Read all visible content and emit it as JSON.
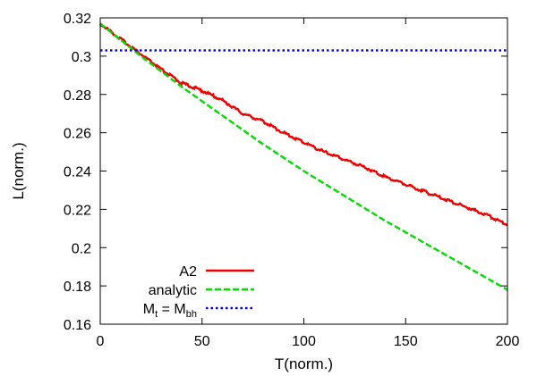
{
  "chart_data": {
    "type": "line",
    "xlabel": "T(norm.)",
    "ylabel": "L(norm.)",
    "xlim": [
      0,
      200
    ],
    "ylim": [
      0.16,
      0.32
    ],
    "xticks": [
      0,
      50,
      100,
      150,
      200
    ],
    "yticks": [
      0.16,
      0.18,
      0.2,
      0.22,
      0.24,
      0.26,
      0.28,
      0.3,
      0.32
    ],
    "xtick_labels": [
      "0",
      "50",
      "100",
      "150",
      "200"
    ],
    "ytick_labels": [
      "0.16",
      "0.18",
      "0.2",
      "0.22",
      "0.24",
      "0.26",
      "0.28",
      "0.3",
      "0.32"
    ],
    "grid": false,
    "legend_position": "bottom-left",
    "series": [
      {
        "name": "A2",
        "color": "#ee0000",
        "style": "solid",
        "x": [
          0,
          10,
          20,
          30,
          40,
          50,
          60,
          70,
          80,
          90,
          100,
          110,
          120,
          130,
          140,
          150,
          160,
          170,
          180,
          190,
          200
        ],
        "y": [
          0.317,
          0.309,
          0.301,
          0.293,
          0.286,
          0.282,
          0.277,
          0.27,
          0.266,
          0.26,
          0.255,
          0.25,
          0.246,
          0.242,
          0.237,
          0.233,
          0.229,
          0.225,
          0.221,
          0.217,
          0.212
        ]
      },
      {
        "name": "analytic",
        "color": "#00dd00",
        "style": "dashed",
        "x": [
          0,
          20,
          40,
          60,
          80,
          100,
          120,
          140,
          160,
          180,
          200
        ],
        "y": [
          0.317,
          0.3,
          0.284,
          0.269,
          0.254,
          0.24,
          0.227,
          0.214,
          0.202,
          0.19,
          0.178
        ]
      },
      {
        "name_main": "M",
        "name_sub1": "t",
        "name_mid": " = M",
        "name_sub2": "bh",
        "color": "#0000ee",
        "style": "dotted",
        "x": [
          0,
          200
        ],
        "y": [
          0.303,
          0.303
        ]
      }
    ]
  }
}
